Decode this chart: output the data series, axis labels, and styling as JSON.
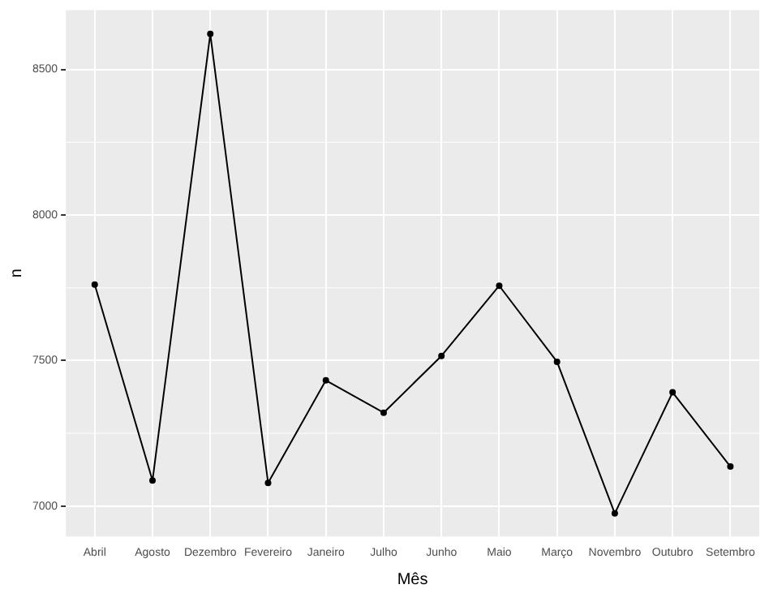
{
  "chart_data": {
    "type": "line",
    "xlabel": "Mês",
    "ylabel": "n",
    "categories": [
      "Abril",
      "Agosto",
      "Dezembro",
      "Fevereiro",
      "Janeiro",
      "Julho",
      "Junho",
      "Maio",
      "Março",
      "Novembro",
      "Outubro",
      "Setembro"
    ],
    "series": [
      {
        "color": "#000000",
        "values": [
          7761,
          7088,
          8622,
          7080,
          7432,
          7321,
          7516,
          7757,
          7496,
          6975,
          7391,
          7136
        ]
      }
    ],
    "ylim": [
      6896,
      8704
    ],
    "yticks": [
      7000,
      7500,
      8000,
      8500
    ],
    "grid": true,
    "legend": false,
    "marker": "circle",
    "line_style": "solid"
  }
}
